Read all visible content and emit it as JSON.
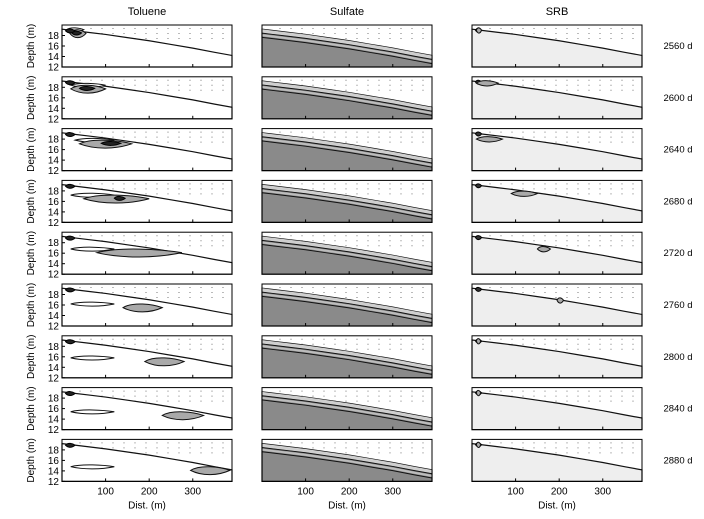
{
  "chart_data": {
    "type": "contour",
    "columns": [
      "Toluene",
      "Sulfate",
      "SRB"
    ],
    "times": [
      "2560 d",
      "2600 d",
      "2640 d",
      "2680 d",
      "2720 d",
      "2760 d",
      "2800 d",
      "2840 d",
      "2880 d"
    ],
    "ylabel": "Depth (m)",
    "xlabel": "Dist. (m)",
    "y_ticks": [
      "18",
      "16",
      "14",
      "12"
    ],
    "x_ticks": [
      "100",
      "200",
      "300"
    ],
    "x_tick_values": [
      100,
      200,
      300
    ],
    "xlim": [
      0,
      390
    ],
    "ylim": [
      12,
      20
    ],
    "surface_profile": {
      "x": [
        0,
        20,
        60,
        100,
        150,
        200,
        250,
        300,
        350,
        390
      ],
      "depth": [
        19.2,
        19.0,
        18.6,
        18.2,
        17.6,
        17.0,
        16.3,
        15.6,
        14.8,
        14.2
      ]
    },
    "grid_dotted": true,
    "colors": {
      "Toluene": "#ffffff",
      "Sulfate": "#8a8a8a",
      "SRB": "#eeeeee",
      "contour_fill": "#a9a9a9",
      "contour_dark": "#222222"
    },
    "plumes": {
      "Toluene": [
        {
          "x": [
            10,
            50
          ],
          "depth": 18.9,
          "light": [
            18,
            55
          ],
          "dark": [
            22,
            45
          ]
        },
        {
          "x": [
            20,
            100
          ],
          "depth": 18.2,
          "light": [
            20,
            100
          ],
          "dark": [
            40,
            75
          ]
        },
        {
          "x": [
            30,
            150
          ],
          "depth": 17.6,
          "light": [
            40,
            160
          ],
          "dark": [
            90,
            135
          ]
        },
        {
          "x": [
            20,
            180
          ],
          "depth": 17.0,
          "light": [
            50,
            200
          ],
          "dark": [
            120,
            145
          ]
        },
        {
          "x": [
            20,
            280
          ],
          "depth": 16.6,
          "light": [
            80,
            275
          ],
          "dark": null
        },
        {
          "x": [
            20,
            320
          ],
          "depth": 16.0,
          "light": [
            140,
            230
          ],
          "dark": null
        },
        {
          "x": [
            20,
            350
          ],
          "depth": 15.6,
          "light": [
            190,
            280
          ],
          "dark": null
        },
        {
          "x": [
            20,
            370
          ],
          "depth": 15.2,
          "light": [
            230,
            325
          ],
          "dark": null
        },
        {
          "x": [
            20,
            390
          ],
          "depth": 14.6,
          "light": [
            295,
            385
          ],
          "dark": null
        }
      ],
      "SRB": [
        {
          "light": [
            10,
            22
          ],
          "depth": 19.0
        },
        {
          "light": [
            10,
            60
          ],
          "depth": 18.8
        },
        {
          "light": [
            10,
            70
          ],
          "depth": 18.0
        },
        {
          "light": [
            90,
            150
          ],
          "depth": 17.5
        },
        {
          "light": [
            150,
            180
          ],
          "depth": 16.8
        },
        {
          "light": [
            195,
            210
          ],
          "depth": 16.9
        },
        {
          "light": [
            10,
            20
          ],
          "depth": 19.0
        },
        {
          "light": [
            10,
            20
          ],
          "depth": 19.0
        },
        {
          "light": [
            10,
            20
          ],
          "depth": 19.0
        }
      ]
    }
  }
}
